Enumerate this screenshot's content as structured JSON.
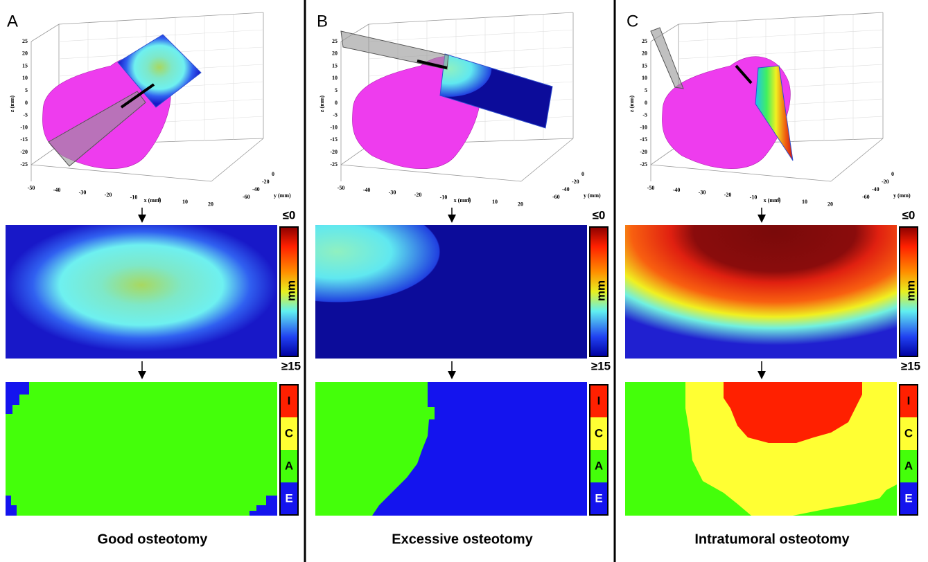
{
  "axes3d": {
    "z_label": "z (mm)",
    "x_label": "x (mm)",
    "y_label": "y (mm)",
    "z_ticks": [
      25,
      20,
      15,
      10,
      5,
      0,
      -5,
      -10,
      -15,
      -20,
      -25
    ],
    "x_ticks": [
      -50,
      -40,
      -30,
      -20,
      -10,
      0,
      10,
      20
    ],
    "y_ticks": [
      0,
      -20,
      -40,
      -60
    ]
  },
  "colorbar": {
    "top": "≤0",
    "unit": "mm",
    "bottom": "≥15"
  },
  "classes": [
    "I",
    "C",
    "A",
    "E"
  ],
  "panels": [
    {
      "letter": "A",
      "caption": "Good osteotomy"
    },
    {
      "letter": "B",
      "caption": "Excessive osteotomy"
    },
    {
      "letter": "C",
      "caption": "Intratumoral osteotomy"
    }
  ]
}
